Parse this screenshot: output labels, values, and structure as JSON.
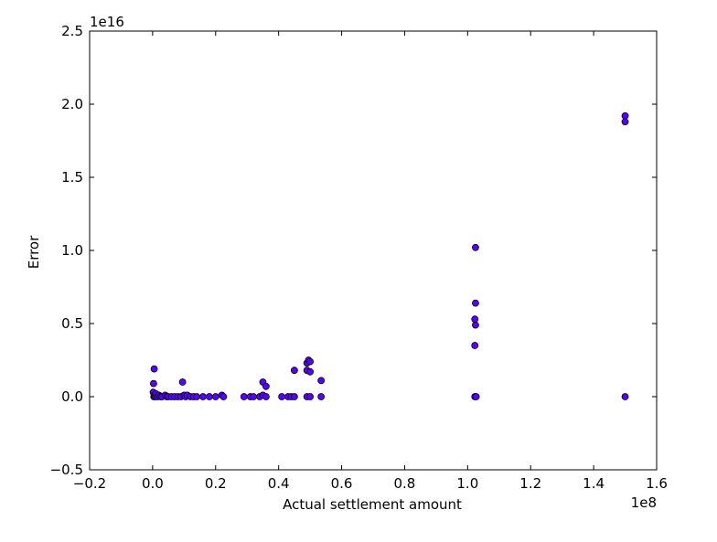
{
  "chart_data": {
    "type": "scatter",
    "xlabel": "Actual settlement amount",
    "ylabel": "Error",
    "x_offset_label": "1e8",
    "y_offset_label": "1e16",
    "xlim": [
      -0.2,
      1.6
    ],
    "ylim": [
      -0.5,
      2.5
    ],
    "xticks": [
      -0.2,
      0.0,
      0.2,
      0.4,
      0.6,
      0.8,
      1.0,
      1.2,
      1.4,
      1.6
    ],
    "xtick_labels": [
      "−0.2",
      "0.0",
      "0.2",
      "0.4",
      "0.6",
      "0.8",
      "1.0",
      "1.2",
      "1.4",
      "1.6"
    ],
    "yticks": [
      -0.5,
      0.0,
      0.5,
      1.0,
      1.5,
      2.0,
      2.5
    ],
    "ytick_labels": [
      "−0.5",
      "0.0",
      "0.5",
      "1.0",
      "1.5",
      "2.0",
      "2.5"
    ],
    "grid": false,
    "marker_color": "#5a00ff",
    "marker_edge_color": "#000000",
    "points": [
      {
        "x": 0.005,
        "y": 0.19
      },
      {
        "x": 0.003,
        "y": 0.09
      },
      {
        "x": 0.002,
        "y": 0.03
      },
      {
        "x": 0.004,
        "y": 0.0
      },
      {
        "x": 0.006,
        "y": 0.01
      },
      {
        "x": 0.008,
        "y": 0.0
      },
      {
        "x": 0.01,
        "y": 0.02
      },
      {
        "x": 0.015,
        "y": 0.0
      },
      {
        "x": 0.02,
        "y": 0.01
      },
      {
        "x": 0.025,
        "y": 0.0
      },
      {
        "x": 0.03,
        "y": 0.0
      },
      {
        "x": 0.04,
        "y": 0.01
      },
      {
        "x": 0.045,
        "y": 0.0
      },
      {
        "x": 0.05,
        "y": 0.0
      },
      {
        "x": 0.06,
        "y": 0.0
      },
      {
        "x": 0.07,
        "y": 0.0
      },
      {
        "x": 0.08,
        "y": 0.0
      },
      {
        "x": 0.09,
        "y": 0.0
      },
      {
        "x": 0.095,
        "y": 0.1
      },
      {
        "x": 0.1,
        "y": 0.01
      },
      {
        "x": 0.105,
        "y": 0.0
      },
      {
        "x": 0.11,
        "y": 0.01
      },
      {
        "x": 0.12,
        "y": 0.0
      },
      {
        "x": 0.13,
        "y": 0.0
      },
      {
        "x": 0.14,
        "y": 0.0
      },
      {
        "x": 0.16,
        "y": 0.0
      },
      {
        "x": 0.18,
        "y": 0.0
      },
      {
        "x": 0.2,
        "y": 0.0
      },
      {
        "x": 0.22,
        "y": 0.01
      },
      {
        "x": 0.225,
        "y": 0.0
      },
      {
        "x": 0.29,
        "y": 0.0
      },
      {
        "x": 0.31,
        "y": 0.0
      },
      {
        "x": 0.32,
        "y": 0.0
      },
      {
        "x": 0.34,
        "y": 0.0
      },
      {
        "x": 0.35,
        "y": 0.1
      },
      {
        "x": 0.35,
        "y": 0.01
      },
      {
        "x": 0.36,
        "y": 0.07
      },
      {
        "x": 0.36,
        "y": 0.0
      },
      {
        "x": 0.41,
        "y": 0.0
      },
      {
        "x": 0.43,
        "y": 0.0
      },
      {
        "x": 0.44,
        "y": 0.0
      },
      {
        "x": 0.45,
        "y": 0.0
      },
      {
        "x": 0.45,
        "y": 0.18
      },
      {
        "x": 0.49,
        "y": 0.23
      },
      {
        "x": 0.495,
        "y": 0.25
      },
      {
        "x": 0.5,
        "y": 0.24
      },
      {
        "x": 0.49,
        "y": 0.18
      },
      {
        "x": 0.5,
        "y": 0.17
      },
      {
        "x": 0.49,
        "y": 0.0
      },
      {
        "x": 0.5,
        "y": 0.0
      },
      {
        "x": 0.535,
        "y": 0.11
      },
      {
        "x": 0.535,
        "y": 0.0
      },
      {
        "x": 1.025,
        "y": 1.02
      },
      {
        "x": 1.025,
        "y": 0.64
      },
      {
        "x": 1.023,
        "y": 0.53
      },
      {
        "x": 1.025,
        "y": 0.49
      },
      {
        "x": 1.023,
        "y": 0.35
      },
      {
        "x": 1.023,
        "y": 0.0
      },
      {
        "x": 1.027,
        "y": 0.0
      },
      {
        "x": 1.5,
        "y": 1.92
      },
      {
        "x": 1.5,
        "y": 1.88
      },
      {
        "x": 1.5,
        "y": 0.0
      }
    ]
  }
}
